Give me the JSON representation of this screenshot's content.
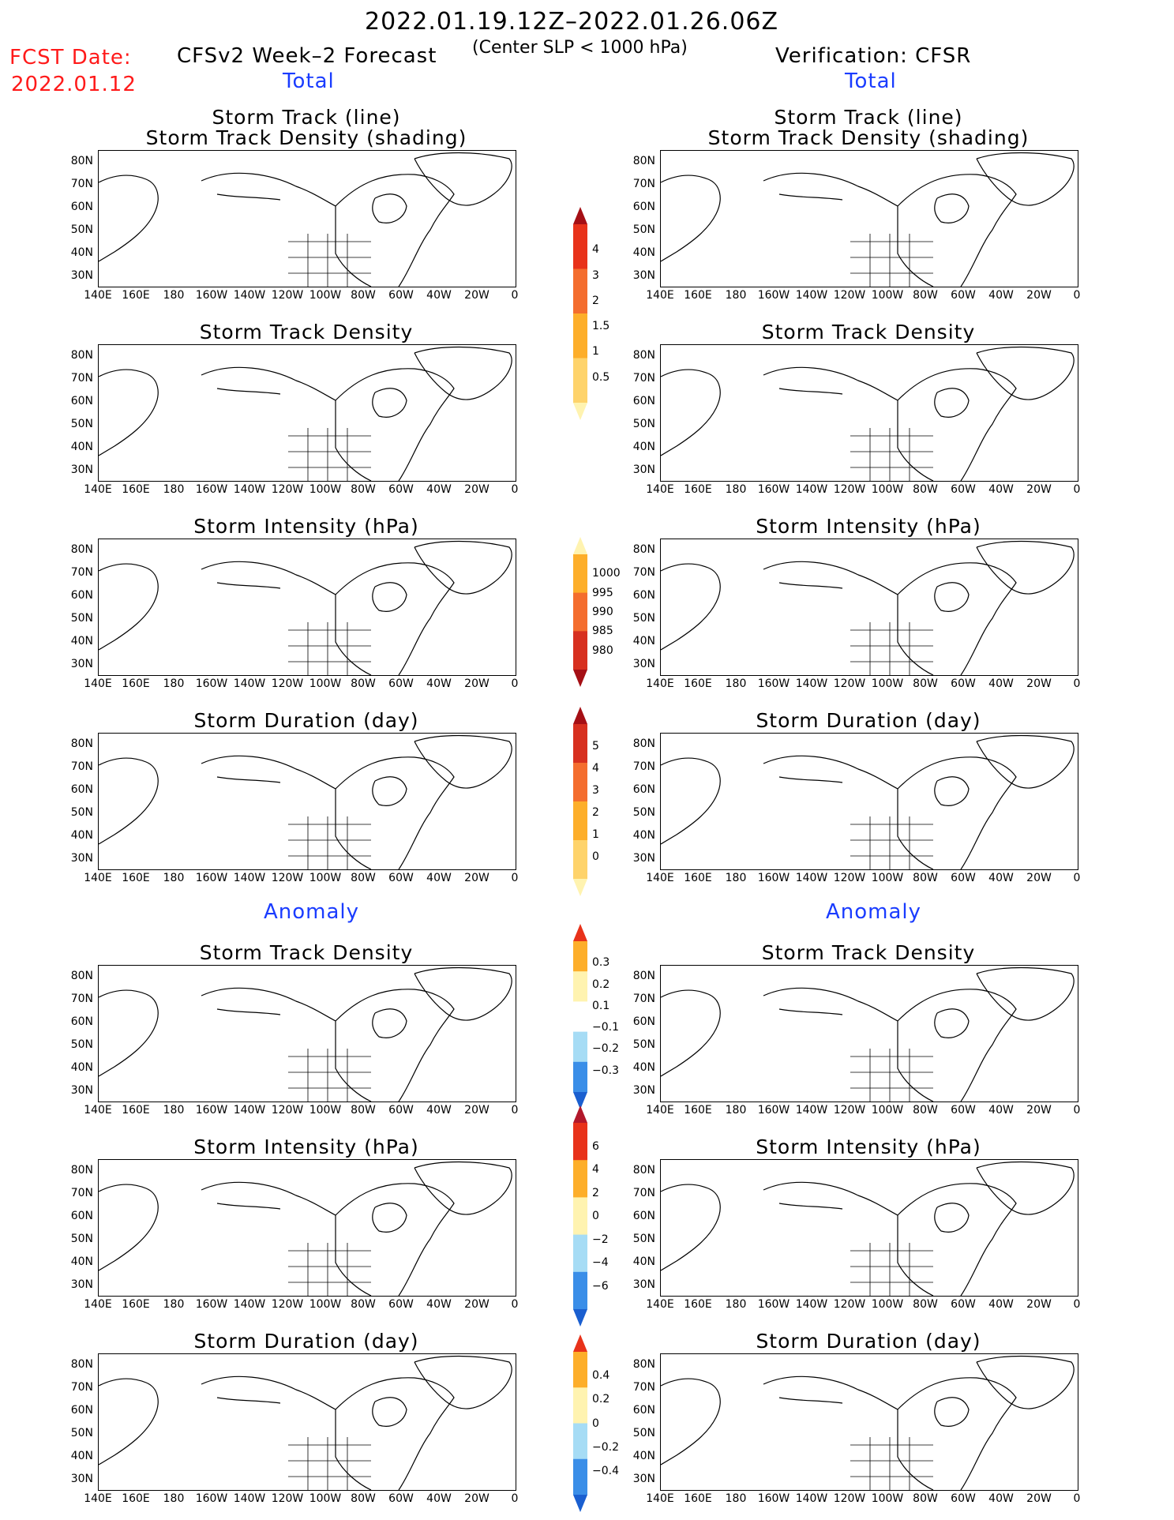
{
  "header": {
    "period": "2022.01.19.12Z–2022.01.26.06Z",
    "criterion": "(Center SLP < 1000 hPa)",
    "fcst_label": "FCST Date:",
    "fcst_date": "2022.01.12",
    "left_title": "CFSv2 Week–2 Forecast",
    "right_title": "Verification: CFSR"
  },
  "sections": {
    "total": "Total",
    "anomaly": "Anomaly"
  },
  "panel_titles": {
    "track_line": "Storm Track (line)",
    "track_shading": "Storm Track Density (shading)",
    "density": "Storm Track Density",
    "intensity": "Storm Intensity (hPa)",
    "duration": "Storm Duration (day)"
  },
  "lat_labels": [
    "80N",
    "70N",
    "60N",
    "50N",
    "40N",
    "30N"
  ],
  "lon_labels": [
    "140E",
    "160E",
    "180",
    "160W",
    "140W",
    "120W",
    "100W",
    "80W",
    "60W",
    "40W",
    "20W",
    "0"
  ],
  "colorbars": {
    "density_total": {
      "labels": [
        "4",
        "3",
        "2",
        "1.5",
        "1",
        "0.5"
      ],
      "colors": [
        "#a50f15",
        "#e8321a",
        "#f46d2e",
        "#fdae2a",
        "#fed36b",
        "#fff3b0"
      ]
    },
    "intensity_total": {
      "labels": [
        "1000",
        "995",
        "990",
        "985",
        "980"
      ],
      "colors": [
        "#fff3b0",
        "#fdae2a",
        "#f46d2e",
        "#d7301f",
        "#a50f15"
      ]
    },
    "duration_total": {
      "labels": [
        "5",
        "4",
        "3",
        "2",
        "1",
        "0"
      ],
      "colors": [
        "#a50f15",
        "#d7301f",
        "#f46d2e",
        "#fdae2a",
        "#fed36b",
        "#fff3b0"
      ]
    },
    "density_anom": {
      "labels": [
        "0.3",
        "0.2",
        "0.1",
        "−0.1",
        "−0.2",
        "−0.3"
      ],
      "colors": [
        "#e8321a",
        "#fdae2a",
        "#fff3b0",
        "#ffffff",
        "#a6dcf5",
        "#3a8ee8",
        "#1a5fd0"
      ]
    },
    "intensity_anom": {
      "labels": [
        "6",
        "4",
        "2",
        "0",
        "−2",
        "−4",
        "−6"
      ],
      "colors": [
        "#b2182b",
        "#e8321a",
        "#fdae2a",
        "#fff3b0",
        "#a6dcf5",
        "#3a8ee8",
        "#1a5fd0"
      ]
    },
    "duration_anom": {
      "labels": [
        "0.4",
        "0.2",
        "0",
        "−0.2",
        "−0.4"
      ],
      "colors": [
        "#e8321a",
        "#fdae2a",
        "#fff3b0",
        "#a6dcf5",
        "#3a8ee8",
        "#1a5fd0"
      ]
    }
  }
}
